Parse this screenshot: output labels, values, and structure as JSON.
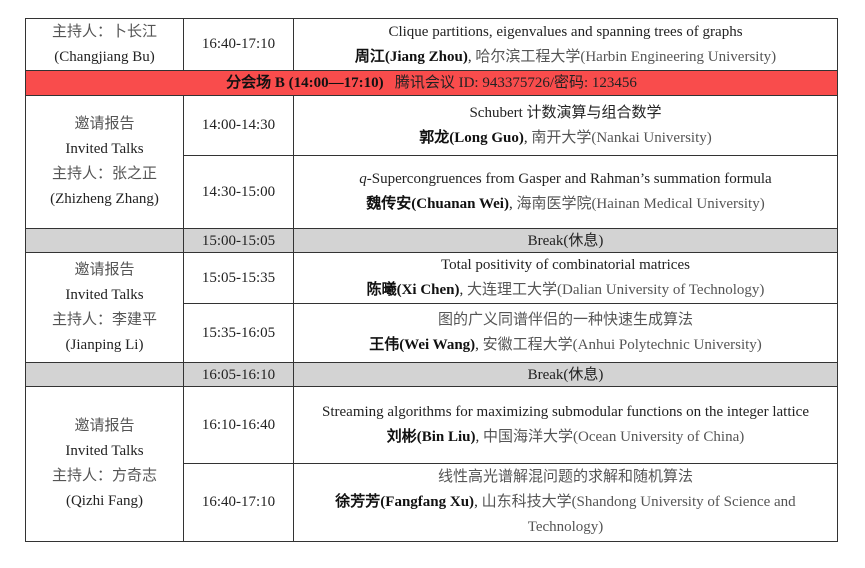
{
  "rows": {
    "r0": {
      "host": "主持人：卜长江",
      "host_en": "(Changjiang Bu)",
      "time": "16:40-17:10",
      "title": "Clique partitions, eigenvalues and spanning trees of graphs",
      "speaker": "周江(Jiang Zhou)",
      "affil": "哈尔滨工程大学(Harbin Engineering University)"
    },
    "session": {
      "name": "分会场 B (14:00—17:10)",
      "meeting": "腾讯会议 ID: 943375726/密码: 123456",
      "color": "#f94c4c"
    },
    "g1": {
      "type": "邀请报告",
      "type_en": "Invited Talks",
      "host": "主持人：张之正",
      "host_en": "(Zhizheng Zhang)"
    },
    "t1": {
      "time": "14:00-14:30",
      "title": "Schubert 计数演算与组合数学",
      "speaker": "郭龙(Long Guo)",
      "affil": "南开大学(Nankai University)"
    },
    "t2": {
      "time": "14:30-15:00",
      "title_q": "q",
      "title": "-Supercongruences from Gasper and Rahman’s summation formula",
      "speaker": "魏传安(Chuanan Wei)",
      "affil": "海南医学院(Hainan Medical University)"
    },
    "b1": {
      "time": "15:00-15:05",
      "label": "Break(休息)"
    },
    "g2": {
      "type": "邀请报告",
      "type_en": "Invited Talks",
      "host": "主持人：李建平",
      "host_en": "(Jianping Li)"
    },
    "t3": {
      "time": "15:05-15:35",
      "title": "Total positivity of combinatorial matrices",
      "speaker": "陈曦(Xi Chen)",
      "affil": "大连理工大学(Dalian University of Technology)"
    },
    "t4": {
      "time": "15:35-16:05",
      "title": "图的广义同谱伴侣的一种快速生成算法",
      "speaker": "王伟(Wei Wang)",
      "affil": "安徽工程大学(Anhui Polytechnic University)"
    },
    "b2": {
      "time": "16:05-16:10",
      "label": "Break(休息)"
    },
    "g3": {
      "type": "邀请报告",
      "type_en": "Invited Talks",
      "host": "主持人：方奇志",
      "host_en": "(Qizhi Fang)"
    },
    "t5": {
      "time": "16:10-16:40",
      "title": "Streaming algorithms for maximizing submodular functions on the integer lattice",
      "speaker": "刘彬(Bin Liu)",
      "affil": "中国海洋大学(Ocean University of China)"
    },
    "t6": {
      "time": "16:40-17:10",
      "title": "线性高光谱解混问题的求解和随机算法",
      "speaker": "徐芳芳(Fangfang Xu)",
      "affil": "山东科技大学(Shandong University of Science and Technology)"
    }
  }
}
